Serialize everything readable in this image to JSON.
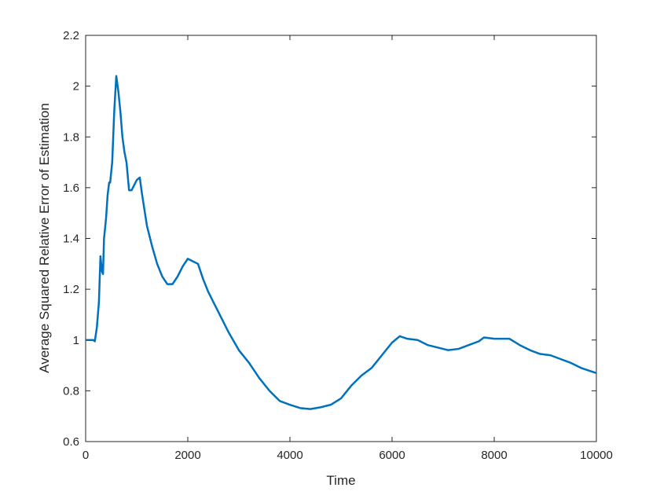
{
  "chart_data": {
    "type": "line",
    "xlabel": "Time",
    "ylabel": "Average Squared Relative Error of Estimation",
    "x": [
      0,
      150,
      180,
      220,
      260,
      290,
      320,
      340,
      360,
      400,
      430,
      460,
      480,
      520,
      560,
      600,
      640,
      680,
      720,
      760,
      800,
      850,
      900,
      950,
      1000,
      1060,
      1100,
      1200,
      1300,
      1400,
      1500,
      1600,
      1700,
      1800,
      1900,
      2000,
      2100,
      2200,
      2300,
      2400,
      2500,
      2600,
      2800,
      3000,
      3200,
      3400,
      3600,
      3800,
      4000,
      4200,
      4400,
      4600,
      4800,
      5000,
      5200,
      5400,
      5600,
      5800,
      6000,
      6150,
      6300,
      6500,
      6700,
      6900,
      7100,
      7300,
      7500,
      7700,
      7800,
      8000,
      8300,
      8500,
      8700,
      8900,
      9100,
      9300,
      9500,
      9700,
      10000
    ],
    "series": [
      {
        "color": "#0072bd",
        "values": [
          1.0,
          1.0,
          0.995,
          1.05,
          1.15,
          1.33,
          1.27,
          1.26,
          1.4,
          1.48,
          1.57,
          1.62,
          1.62,
          1.7,
          1.9,
          2.04,
          1.98,
          1.9,
          1.8,
          1.74,
          1.7,
          1.59,
          1.59,
          1.61,
          1.63,
          1.64,
          1.58,
          1.45,
          1.37,
          1.3,
          1.25,
          1.22,
          1.22,
          1.25,
          1.29,
          1.32,
          1.31,
          1.3,
          1.24,
          1.19,
          1.15,
          1.11,
          1.03,
          0.96,
          0.91,
          0.85,
          0.8,
          0.76,
          0.745,
          0.732,
          0.728,
          0.735,
          0.745,
          0.77,
          0.82,
          0.86,
          0.89,
          0.94,
          0.99,
          1.015,
          1.005,
          1.0,
          0.98,
          0.97,
          0.96,
          0.965,
          0.98,
          0.995,
          1.01,
          1.005,
          1.005,
          0.98,
          0.96,
          0.945,
          0.94,
          0.925,
          0.91,
          0.89,
          0.87
        ]
      }
    ],
    "xlim": [
      0,
      10000
    ],
    "xticks": [
      0,
      2000,
      4000,
      6000,
      8000,
      10000
    ],
    "ylim": [
      0.6,
      2.2
    ],
    "yticks": [
      0.6,
      0.8,
      1,
      1.2,
      1.4,
      1.6,
      1.8,
      2,
      2.2
    ]
  }
}
